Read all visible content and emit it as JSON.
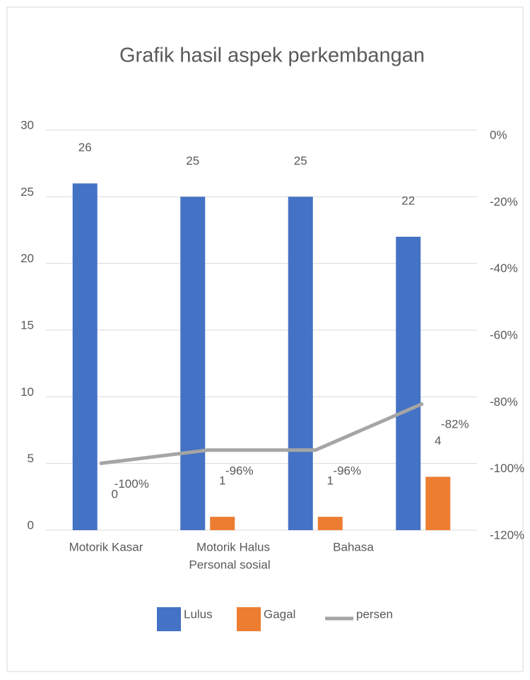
{
  "chart_data": {
    "type": "bar",
    "title": "Grafik hasil aspek perkembangan",
    "categories": [
      "Motorik Kasar",
      "Motorik Halus",
      "Personal sosial",
      "Bahasa"
    ],
    "series": [
      {
        "name": "Lulus",
        "color": "#4472c4",
        "values": [
          26,
          25,
          25,
          22
        ]
      },
      {
        "name": "Gagal",
        "color": "#ed7d31",
        "values": [
          0,
          1,
          1,
          4
        ]
      },
      {
        "name": "persen",
        "color": "#a5a5a5",
        "type": "line",
        "axis": "y2",
        "values": [
          -100,
          -96,
          -96,
          -82
        ],
        "value_labels": [
          "-100%",
          "-96%",
          "-96%",
          "-82%"
        ]
      }
    ],
    "ylim": [
      0,
      30
    ],
    "yticks": [
      0,
      5,
      10,
      15,
      20,
      25,
      30
    ],
    "y2lim": [
      -120,
      0
    ],
    "y2ticks": [
      {
        "value": 0,
        "label": "0%"
      },
      {
        "value": -20,
        "label": "-20%"
      },
      {
        "value": -40,
        "label": "-40%"
      },
      {
        "value": -60,
        "label": "-60%"
      },
      {
        "value": -80,
        "label": "-80%"
      },
      {
        "value": -100,
        "label": "-100%"
      },
      {
        "value": -120,
        "label": "-120%"
      }
    ],
    "grid": true,
    "legend": "bottom"
  }
}
